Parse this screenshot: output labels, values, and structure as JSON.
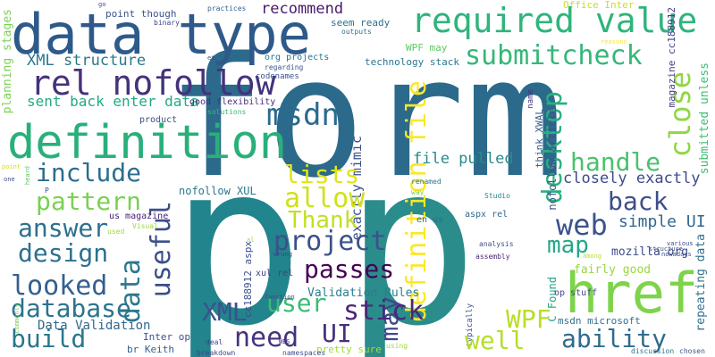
{
  "words": [
    {
      "text": "form",
      "color": "#2c6a8c"
    },
    {
      "text": "p",
      "color": "#22848c"
    },
    {
      "text": "p",
      "color": "#2b8c8c"
    },
    {
      "text": "data type",
      "color": "#2e5a8a"
    },
    {
      "text": "definition",
      "color": "#29b07a"
    },
    {
      "text": "required value",
      "color": "#2fb47c"
    },
    {
      "text": "href",
      "color": "#7ed34b"
    },
    {
      "text": "rel nofollow",
      "color": "#45327c"
    },
    {
      "text": "submitcheck",
      "color": "#35b779"
    },
    {
      "text": "XML structure",
      "color": "#2a788e"
    },
    {
      "text": "close",
      "color": "#8fd744"
    },
    {
      "text": "msdn",
      "color": "#2a6a8e"
    },
    {
      "text": "definition file",
      "color": "#fde725"
    },
    {
      "text": "sent back enter data",
      "color": "#22a884"
    },
    {
      "text": "recommend",
      "color": "#481a6c"
    },
    {
      "text": "desktop",
      "color": "#2ab07f"
    },
    {
      "text": "handle",
      "color": "#4ac16d"
    },
    {
      "text": "include",
      "color": "#2c6e8e"
    },
    {
      "text": "lists",
      "color": "#e2e418"
    },
    {
      "text": "file pulled",
      "color": "#2a8a8b"
    },
    {
      "text": "back",
      "color": "#3d4e8a"
    },
    {
      "text": "closely exactly",
      "color": "#3e4a89"
    },
    {
      "text": "allow",
      "color": "#d0e11c"
    },
    {
      "text": "pattern",
      "color": "#7ad151"
    },
    {
      "text": "answer",
      "color": "#2d708e"
    },
    {
      "text": "Thank",
      "color": "#c2df23"
    },
    {
      "text": "web",
      "color": "#3a548c"
    },
    {
      "text": "simple UI",
      "color": "#31678e"
    },
    {
      "text": "project",
      "color": "#3b518b"
    },
    {
      "text": "design",
      "color": "#2d718e"
    },
    {
      "text": "useful",
      "color": "#3c4f8a"
    },
    {
      "text": "data",
      "color": "#2a778e"
    },
    {
      "text": "map",
      "color": "#22a785"
    },
    {
      "text": "looked",
      "color": "#34608d"
    },
    {
      "text": "passes",
      "color": "#440154"
    },
    {
      "text": "database",
      "color": "#2c738e"
    },
    {
      "text": "user",
      "color": "#3bbb75"
    },
    {
      "text": "XML",
      "color": "#3a538b"
    },
    {
      "text": "stick",
      "color": "#482878"
    },
    {
      "text": "WPF",
      "color": "#b8de29"
    },
    {
      "text": "build",
      "color": "#2a768e"
    },
    {
      "text": "need",
      "color": "#46337e"
    },
    {
      "text": "UI",
      "color": "#472f7d"
    },
    {
      "text": "may",
      "color": "#3f4889"
    },
    {
      "text": "well",
      "color": "#b5de2b"
    },
    {
      "text": "ability",
      "color": "#2f6c8e"
    },
    {
      "text": "exactly mimic",
      "color": "#3c508b"
    },
    {
      "text": "Validation Rules",
      "color": "#27808e"
    },
    {
      "text": "Data Validation",
      "color": "#31688e"
    },
    {
      "text": "nofollow XUL",
      "color": "#2a788e"
    },
    {
      "text": "fairly good",
      "color": "#98d83e"
    },
    {
      "text": "mozilla org",
      "color": "#3e4c8a"
    },
    {
      "text": "repeating data",
      "color": "#2e6f8e"
    },
    {
      "text": "submitted unless",
      "color": "#3cbc74"
    },
    {
      "text": "magazine cc188912",
      "color": "#433e85"
    },
    {
      "text": "nofollow article",
      "color": "#3b528b"
    },
    {
      "text": "think XWAL",
      "color": "#355f8d"
    },
    {
      "text": "msdn microsoft",
      "color": "#2c728e"
    },
    {
      "text": "C Found",
      "color": "#20a386"
    },
    {
      "text": "Inter op",
      "color": "#3b528b"
    },
    {
      "text": "br Keith",
      "color": "#355f8d"
    },
    {
      "text": "pretty sure",
      "color": "#a0da39"
    },
    {
      "text": "planning stages",
      "color": "#7ad151"
    },
    {
      "text": "technology stack",
      "color": "#2a788e"
    },
    {
      "text": "seem ready",
      "color": "#2c728e"
    },
    {
      "text": "point though",
      "color": "#3a548c"
    },
    {
      "text": "Office Inter",
      "color": "#c8e020"
    },
    {
      "text": "WPF may",
      "color": "#5ec962"
    },
    {
      "text": "good flexibility",
      "color": "#472d7b"
    },
    {
      "text": "org projects",
      "color": "#2b758e"
    },
    {
      "text": "product",
      "color": "#3d4d8a"
    },
    {
      "text": "us magazine",
      "color": "#482475"
    },
    {
      "text": "cc188912 aspx",
      "color": "#3c508b"
    },
    {
      "text": "xul rel",
      "color": "#424086"
    },
    {
      "text": "en us",
      "color": "#2f6c8e"
    },
    {
      "text": "aspx rel",
      "color": "#31678e"
    },
    {
      "text": "op stuff",
      "color": "#3f4889"
    },
    {
      "text": "Studio",
      "color": "#25858e"
    },
    {
      "text": "renamed",
      "color": "#2a788e"
    },
    {
      "text": "codenames",
      "color": "#3b528b"
    },
    {
      "text": "regarding",
      "color": "#39558c"
    },
    {
      "text": "practices",
      "color": "#33638d"
    },
    {
      "text": "binary",
      "color": "#3f4788"
    },
    {
      "text": "solutions",
      "color": "#35b779"
    },
    {
      "text": "outputs",
      "color": "#2c728e"
    },
    {
      "text": "name",
      "color": "#46337e"
    },
    {
      "text": "Visual",
      "color": "#9bd93c"
    },
    {
      "text": "used",
      "color": "#9bd93c"
    },
    {
      "text": "way",
      "color": "#7ad151"
    },
    {
      "text": "namespaces",
      "color": "#3b528b"
    },
    {
      "text": "breakdown",
      "color": "#3e4989"
    },
    {
      "text": "deal",
      "color": "#424086"
    },
    {
      "text": "analysis",
      "color": "#3b528b"
    },
    {
      "text": "assembly",
      "color": "#482878"
    },
    {
      "text": "typically",
      "color": "#3a548c"
    },
    {
      "text": "discussion",
      "color": "#2c728e"
    },
    {
      "text": "chosen",
      "color": "#3b528b"
    },
    {
      "text": "various",
      "color": "#3e4989"
    },
    {
      "text": "nowadays",
      "color": "#3e4989"
    },
    {
      "text": "structure",
      "color": "#3b528b"
    },
    {
      "text": "wrong",
      "color": "#3f4788"
    },
    {
      "text": "using",
      "color": "#a0da39"
    },
    {
      "text": "function",
      "color": "#3e4989"
    },
    {
      "text": "WBS",
      "color": "#46337e"
    },
    {
      "text": "commonly",
      "color": "#7ad151"
    },
    {
      "text": "reasons",
      "color": "#fde725"
    },
    {
      "text": "among",
      "color": "#bddf26"
    },
    {
      "text": "heard",
      "color": "#5ec962"
    },
    {
      "text": "point",
      "color": "#d2e21b"
    },
    {
      "text": "one",
      "color": "#3b528b"
    },
    {
      "text": "go",
      "color": "#3b528b"
    },
    {
      "text": "et",
      "color": "#3b528b"
    },
    {
      "text": "al",
      "color": "#9bd93c"
    },
    {
      "text": "P",
      "color": "#3e4989"
    }
  ]
}
